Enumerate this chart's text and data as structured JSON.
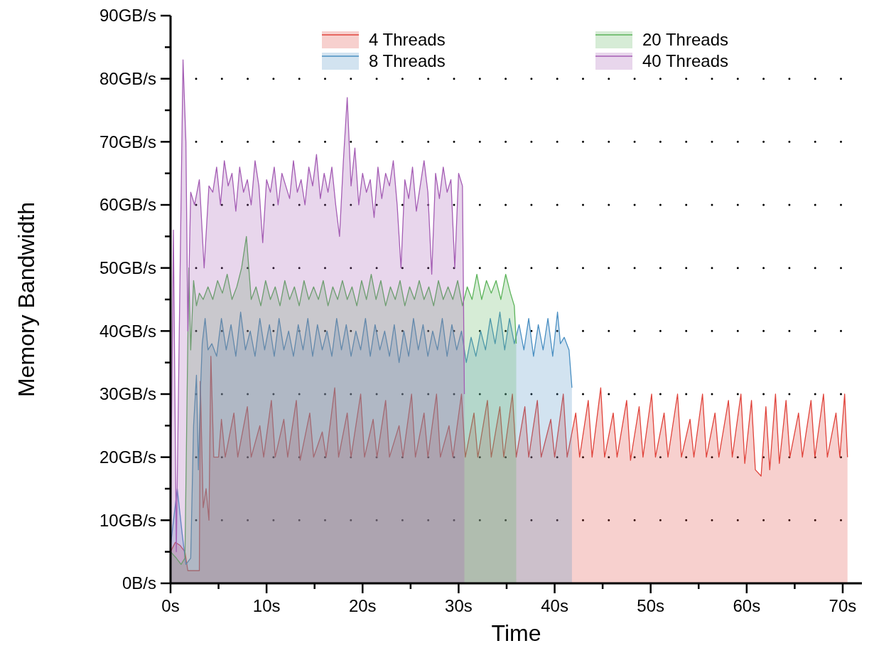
{
  "chart_data": {
    "type": "area",
    "xlabel": "Time",
    "ylabel": "Memory Bandwidth",
    "xlim": [
      0,
      72
    ],
    "ylim": [
      0,
      90
    ],
    "xticks": [
      {
        "value": 0,
        "label": "0s"
      },
      {
        "value": 5,
        "label": null
      },
      {
        "value": 10,
        "label": "10s"
      },
      {
        "value": 15,
        "label": null
      },
      {
        "value": 20,
        "label": "20s"
      },
      {
        "value": 25,
        "label": null
      },
      {
        "value": 30,
        "label": "30s"
      },
      {
        "value": 35,
        "label": null
      },
      {
        "value": 40,
        "label": "40s"
      },
      {
        "value": 45,
        "label": null
      },
      {
        "value": 50,
        "label": "50s"
      },
      {
        "value": 55,
        "label": null
      },
      {
        "value": 60,
        "label": "60s"
      },
      {
        "value": 65,
        "label": null
      },
      {
        "value": 70,
        "label": "70s"
      }
    ],
    "yticks": [
      {
        "value": 0,
        "label": "0B/s"
      },
      {
        "value": 5,
        "label": null
      },
      {
        "value": 10,
        "label": "10GB/s"
      },
      {
        "value": 15,
        "label": null
      },
      {
        "value": 20,
        "label": "20GB/s"
      },
      {
        "value": 25,
        "label": null
      },
      {
        "value": 30,
        "label": "30GB/s"
      },
      {
        "value": 35,
        "label": null
      },
      {
        "value": 40,
        "label": "40GB/s"
      },
      {
        "value": 45,
        "label": null
      },
      {
        "value": 50,
        "label": "50GB/s"
      },
      {
        "value": 55,
        "label": null
      },
      {
        "value": 60,
        "label": "60GB/s"
      },
      {
        "value": 65,
        "label": null
      },
      {
        "value": 70,
        "label": "70GB/s"
      },
      {
        "value": 75,
        "label": null
      },
      {
        "value": 80,
        "label": "80GB/s"
      },
      {
        "value": 85,
        "label": null
      },
      {
        "value": 90,
        "label": "90GB/s"
      }
    ],
    "grid": "y",
    "legend": "top right",
    "series": [
      {
        "name": "4 Threads",
        "color": "#e0443c",
        "x": [
          0,
          0.5,
          1,
          1.5,
          1.8,
          2.5,
          3,
          3.1,
          3.4,
          3.7,
          4,
          4.2,
          4.5,
          5,
          5.3,
          5.7,
          6.6,
          7,
          8,
          8.4,
          9.3,
          9.7,
          10.5,
          10.9,
          11.8,
          12.2,
          13.1,
          13.5,
          14.5,
          14.9,
          15.8,
          16.2,
          17.1,
          17.5,
          18.4,
          18.8,
          19.8,
          20.2,
          21.1,
          21.5,
          22.4,
          22.8,
          23.8,
          24.2,
          25.1,
          25.5,
          26.4,
          26.8,
          27.7,
          28.1,
          29,
          29.4,
          30.3,
          30.7,
          31.6,
          32,
          33,
          33.4,
          34.3,
          34.7,
          35.6,
          36,
          36.9,
          37.3,
          38.2,
          38.6,
          39.6,
          40,
          40.9,
          41.3,
          42.2,
          42.6,
          43.5,
          43.9,
          44.8,
          45.2,
          46.1,
          46.5,
          47.5,
          47.9,
          48.8,
          49.2,
          50.1,
          50.5,
          51.4,
          51.8,
          52.8,
          53.2,
          54.1,
          54.5,
          55.4,
          55.8,
          56.7,
          57.1,
          58.1,
          58.5,
          59.4,
          59.8,
          60.5,
          60.9,
          61.5,
          62,
          62.4,
          63,
          63.4,
          64.1,
          64.5,
          65.4,
          65.8,
          66.7,
          67.1,
          68,
          68.4,
          69.3,
          69.7,
          70.2,
          70.5
        ],
        "values": [
          5,
          6.5,
          6,
          5,
          2,
          2,
          2,
          32,
          12,
          15,
          10,
          36,
          20,
          20,
          26,
          20,
          27,
          20,
          28,
          20,
          25,
          20,
          29,
          20,
          26,
          20,
          29,
          19.5,
          27,
          20,
          24,
          20,
          31,
          20,
          27,
          20,
          30,
          20,
          26,
          20,
          29,
          20,
          25,
          20,
          30,
          20,
          27,
          20,
          30,
          20,
          25,
          20,
          30,
          20,
          27,
          20,
          29,
          20,
          28,
          20,
          30,
          20,
          28,
          20,
          29,
          20,
          26,
          20,
          30,
          20,
          27,
          20,
          29,
          20,
          31,
          20,
          27,
          20,
          29,
          19.5,
          28,
          20,
          30,
          20,
          27,
          20,
          30,
          20,
          26,
          20,
          30,
          20,
          27,
          20,
          29,
          20,
          30,
          19,
          29,
          18,
          17,
          28,
          18,
          30,
          19,
          29,
          20,
          27,
          20,
          29,
          20,
          30,
          20,
          27,
          20,
          30,
          20
        ]
      },
      {
        "name": "8 Threads",
        "color": "#4a8fc2",
        "x": [
          0,
          0.7,
          1.2,
          1.6,
          2.1,
          2.4,
          2.7,
          2.9,
          3.1,
          3.3,
          3.6,
          3.9,
          4.3,
          4.8,
          5.3,
          5.8,
          6.3,
          6.8,
          7.3,
          7.8,
          8.3,
          8.8,
          9.3,
          9.8,
          10.3,
          10.8,
          11.3,
          11.8,
          12.3,
          12.8,
          13.3,
          13.8,
          14.3,
          14.8,
          15.3,
          15.8,
          16.3,
          16.8,
          17.3,
          17.8,
          18.3,
          18.8,
          19.3,
          19.8,
          20.3,
          20.8,
          21.3,
          21.8,
          22.3,
          22.8,
          23.3,
          23.8,
          24.3,
          24.8,
          25.3,
          25.8,
          26.3,
          26.8,
          27.3,
          27.8,
          28.3,
          28.8,
          29.3,
          29.8,
          30.3,
          30.8,
          31.3,
          31.8,
          32.3,
          32.8,
          33.3,
          33.8,
          34.3,
          34.8,
          35.3,
          35.8,
          36.3,
          36.8,
          37.3,
          37.8,
          38.3,
          38.8,
          39.3,
          39.8,
          40.3,
          40.6,
          41,
          41.5,
          41.8
        ],
        "values": [
          6,
          15,
          8,
          3,
          4,
          25,
          33,
          18,
          30,
          38,
          42,
          37,
          38,
          36,
          42,
          37,
          41,
          36,
          43,
          37,
          40,
          36,
          42,
          37,
          41,
          36,
          42,
          37,
          40,
          36,
          41,
          37,
          42,
          36,
          41,
          37,
          40,
          36,
          42,
          37,
          41,
          36,
          40,
          37,
          42,
          36,
          41,
          37,
          40,
          36,
          41,
          35,
          40,
          36,
          42,
          37,
          41,
          36,
          40,
          37,
          42,
          36,
          41,
          37,
          40,
          35,
          39,
          36,
          40,
          37,
          42,
          38,
          43,
          37,
          42,
          38,
          41,
          37,
          42,
          36,
          41,
          37,
          42,
          36,
          43,
          38,
          39,
          37,
          31
        ]
      },
      {
        "name": "20 Threads",
        "color": "#5cb35a",
        "x": [
          0,
          0.6,
          1.1,
          1.5,
          1.9,
          2.1,
          2.4,
          2.7,
          3,
          3.4,
          3.9,
          4.4,
          4.9,
          5.4,
          5.9,
          6.4,
          6.9,
          7.4,
          7.9,
          8.4,
          8.9,
          9.4,
          9.9,
          10.4,
          10.9,
          11.4,
          11.9,
          12.4,
          12.9,
          13.4,
          13.9,
          14.4,
          14.9,
          15.4,
          15.9,
          16.4,
          16.9,
          17.4,
          17.9,
          18.4,
          18.9,
          19.4,
          19.9,
          20.4,
          20.9,
          21.4,
          21.9,
          22.4,
          22.9,
          23.4,
          23.9,
          24.4,
          24.9,
          25.4,
          25.9,
          26.4,
          26.9,
          27.4,
          27.9,
          28.4,
          28.9,
          29.4,
          29.9,
          30.4,
          30.9,
          31.4,
          31.9,
          32.4,
          32.9,
          33.4,
          33.9,
          34.4,
          34.9,
          35.4,
          35.8,
          36
        ],
        "values": [
          5,
          4,
          3,
          4,
          50,
          37,
          48,
          44,
          46,
          45,
          47,
          45,
          48,
          46,
          49,
          45,
          47,
          50,
          55,
          45,
          47,
          44,
          48,
          45,
          47,
          44,
          48,
          45,
          47,
          44,
          48,
          45,
          47,
          45,
          48,
          44,
          47,
          45,
          48,
          45,
          47,
          44,
          48,
          45,
          49,
          45,
          48,
          44,
          47,
          45,
          48,
          44,
          47,
          45,
          48,
          45,
          47,
          44,
          48,
          45,
          47,
          45,
          48,
          44,
          47,
          45,
          49,
          45,
          48,
          46,
          48,
          45,
          49,
          46,
          44,
          38
        ]
      },
      {
        "name": "40 Threads",
        "color": "#a45db4",
        "x": [
          0,
          0.3,
          0.6,
          1,
          1.3,
          1.6,
          1.8,
          2.1,
          2.5,
          3,
          3.5,
          4,
          4.4,
          4.8,
          5.2,
          5.6,
          6,
          6.4,
          6.8,
          7.2,
          7.6,
          8,
          8.4,
          8.8,
          9.2,
          9.6,
          10,
          10.4,
          10.8,
          11.2,
          11.6,
          12,
          12.4,
          12.8,
          13.2,
          13.6,
          14,
          14.4,
          14.8,
          15.2,
          15.6,
          16,
          16.4,
          16.8,
          17.2,
          17.6,
          18,
          18.4,
          18.8,
          19.2,
          19.6,
          20,
          20.4,
          20.8,
          21.2,
          21.6,
          22,
          22.4,
          22.8,
          23.2,
          23.6,
          24,
          24.4,
          24.8,
          25.2,
          25.6,
          26,
          26.4,
          26.8,
          27.2,
          27.6,
          28,
          28.4,
          28.8,
          29.2,
          29.6,
          30,
          30.4,
          30.6
        ],
        "values": [
          10,
          56,
          5,
          50,
          83,
          70,
          40,
          62,
          60,
          64,
          50,
          63,
          62,
          66,
          60,
          67,
          63,
          65,
          59,
          66,
          62,
          64,
          60,
          67,
          63,
          54,
          64,
          62,
          66,
          60,
          65,
          63,
          61,
          67,
          62,
          64,
          60,
          66,
          63,
          68,
          61,
          65,
          62,
          66,
          60,
          55,
          67,
          77,
          63,
          69,
          60,
          65,
          62,
          64,
          58,
          66,
          61,
          65,
          63,
          67,
          60,
          50,
          64,
          61,
          66,
          59,
          63,
          67,
          62,
          49,
          65,
          61,
          66,
          62,
          64,
          50,
          65,
          63,
          30
        ]
      }
    ]
  }
}
